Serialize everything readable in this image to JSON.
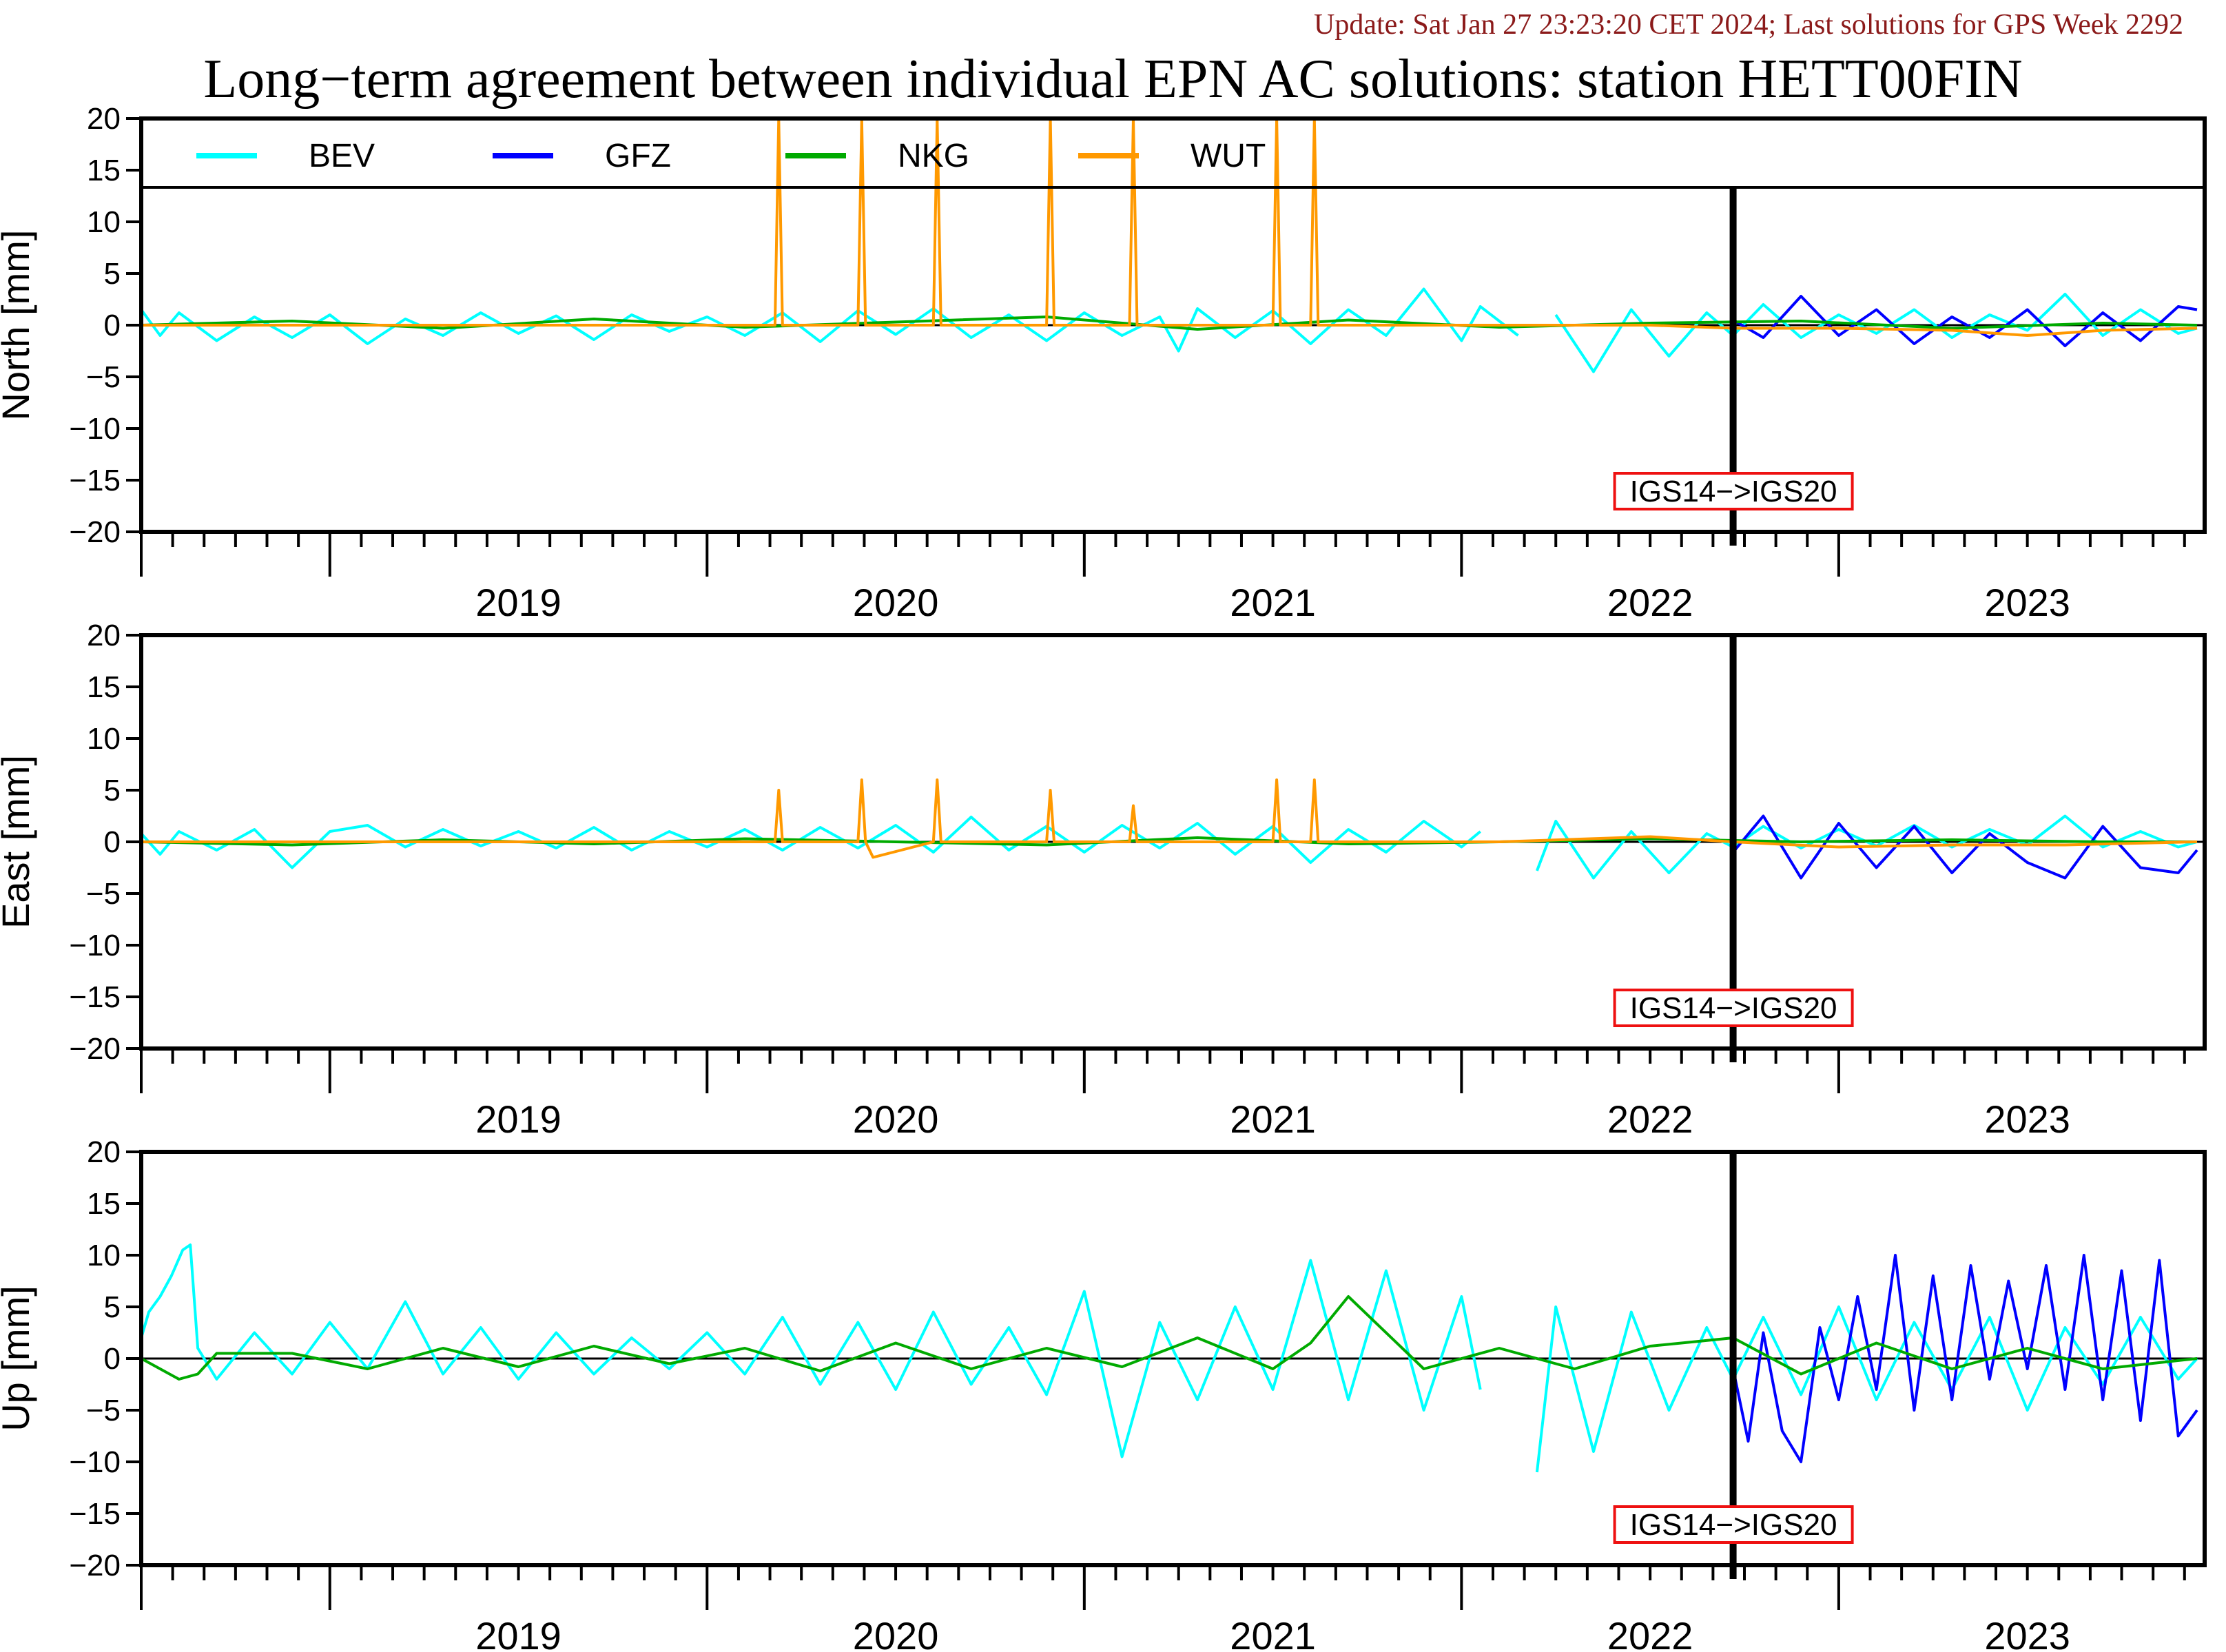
{
  "update_text": "Update: Sat Jan 27 23:23:20 CET 2024; Last solutions for GPS Week 2292",
  "chart_data": {
    "type": "line",
    "title": "Long−term agreement between individual EPN AC solutions: station HETT00FIN",
    "xlim": [
      2018.5,
      2023.97
    ],
    "year_ticks": [
      "2019",
      "2020",
      "2021",
      "2022",
      "2023"
    ],
    "ylim": [
      -20,
      20
    ],
    "yticks": [
      "20",
      "15",
      "10",
      "5",
      "0",
      "−5",
      "−10",
      "−15",
      "−20"
    ],
    "legend": {
      "placement": "top-left",
      "entries": [
        {
          "name": "BEV",
          "color": "#00ffff"
        },
        {
          "name": "GFZ",
          "color": "#0000ff"
        },
        {
          "name": "NKG",
          "color": "#00aa00"
        },
        {
          "name": "WUT",
          "color": "#ff9900"
        }
      ]
    },
    "reference_frame_change": {
      "label": "IGS14−>IGS20",
      "x": 2022.72
    },
    "panels": [
      {
        "ylabel": "North [mm]",
        "series": [
          {
            "name": "BEV",
            "x": [
              2018.5,
              2018.55,
              2018.6,
              2018.7,
              2018.8,
              2018.9,
              2019.0,
              2019.1,
              2019.2,
              2019.3,
              2019.4,
              2019.5,
              2019.6,
              2019.7,
              2019.8,
              2019.9,
              2020.0,
              2020.1,
              2020.2,
              2020.3,
              2020.4,
              2020.5,
              2020.6,
              2020.7,
              2020.8,
              2020.9,
              2021.0,
              2021.1,
              2021.2,
              2021.25,
              2021.3,
              2021.4,
              2021.5,
              2021.6,
              2021.7,
              2021.8,
              2021.9,
              2022.0,
              2022.05,
              2022.15,
              2022.2,
              2022.25,
              2022.35,
              2022.45,
              2022.55,
              2022.65,
              2022.72,
              2022.8,
              2022.9,
              2023.0,
              2023.1,
              2023.2,
              2023.3,
              2023.4,
              2023.5,
              2023.6,
              2023.7,
              2023.8,
              2023.9,
              2023.95
            ],
            "y": [
              1.5,
              -1.0,
              1.2,
              -1.5,
              0.8,
              -1.2,
              1.0,
              -1.8,
              0.6,
              -1.0,
              1.2,
              -0.8,
              0.9,
              -1.4,
              1.0,
              -0.6,
              0.8,
              -1.0,
              1.2,
              -1.6,
              1.4,
              -0.9,
              1.6,
              -1.2,
              1.0,
              -1.5,
              1.2,
              -1.0,
              0.8,
              -2.5,
              1.6,
              -1.2,
              1.4,
              -1.8,
              1.5,
              -1.0,
              3.5,
              -1.5,
              1.8,
              -1.0,
              null,
              1.0,
              -4.5,
              1.5,
              -3.0,
              1.2,
              -1.0,
              2.0,
              -1.2,
              1.0,
              -0.8,
              1.5,
              -1.2,
              1.0,
              -0.5,
              3.0,
              -1.0,
              1.5,
              -0.8,
              -0.3
            ]
          },
          {
            "name": "GFZ",
            "x": [
              2022.72,
              2022.8,
              2022.9,
              2023.0,
              2023.1,
              2023.2,
              2023.3,
              2023.4,
              2023.5,
              2023.6,
              2023.7,
              2023.8,
              2023.9,
              2023.95
            ],
            "y": [
              0.5,
              -1.2,
              2.8,
              -1.0,
              1.5,
              -1.8,
              0.8,
              -1.2,
              1.5,
              -2.0,
              1.2,
              -1.5,
              1.8,
              1.5
            ]
          },
          {
            "name": "NKG",
            "x": [
              2018.5,
              2018.9,
              2019.3,
              2019.7,
              2020.1,
              2020.5,
              2020.9,
              2021.3,
              2021.7,
              2022.1,
              2022.5,
              2022.9,
              2023.3,
              2023.7,
              2023.95
            ],
            "y": [
              0.0,
              0.4,
              -0.3,
              0.6,
              -0.2,
              0.3,
              0.8,
              -0.4,
              0.5,
              -0.2,
              0.2,
              0.4,
              -0.3,
              0.2,
              0.0
            ]
          },
          {
            "name": "WUT",
            "x": [
              2018.5,
              2020.18,
              2020.19,
              2020.2,
              2020.4,
              2020.41,
              2020.42,
              2020.6,
              2020.61,
              2020.62,
              2020.9,
              2020.91,
              2020.92,
              2021.12,
              2021.13,
              2021.14,
              2021.5,
              2021.51,
              2021.52,
              2021.6,
              2021.61,
              2021.62,
              2022.1,
              2022.5,
              2022.72,
              2023.0,
              2023.3,
              2023.5,
              2023.7,
              2023.95
            ],
            "y": [
              0.0,
              0.0,
              20.0,
              0.0,
              0.0,
              20.0,
              0.0,
              0.0,
              20.0,
              0.0,
              0.0,
              20.0,
              0.0,
              0.0,
              20.0,
              0.0,
              0.0,
              20.0,
              0.0,
              0.0,
              20.0,
              0.0,
              0.0,
              0.0,
              -0.3,
              -0.3,
              -0.5,
              -1.0,
              -0.5,
              -0.3
            ]
          }
        ]
      },
      {
        "ylabel": "East [mm]",
        "series": [
          {
            "name": "BEV",
            "x": [
              2018.5,
              2018.55,
              2018.6,
              2018.7,
              2018.8,
              2018.9,
              2019.0,
              2019.1,
              2019.2,
              2019.3,
              2019.4,
              2019.5,
              2019.6,
              2019.7,
              2019.8,
              2019.9,
              2020.0,
              2020.1,
              2020.2,
              2020.3,
              2020.4,
              2020.5,
              2020.6,
              2020.7,
              2020.8,
              2020.9,
              2021.0,
              2021.1,
              2021.2,
              2021.3,
              2021.4,
              2021.5,
              2021.6,
              2021.7,
              2021.8,
              2021.9,
              2022.0,
              2022.05,
              2022.15,
              2022.2,
              2022.25,
              2022.35,
              2022.45,
              2022.55,
              2022.65,
              2022.72,
              2022.8,
              2022.9,
              2023.0,
              2023.1,
              2023.2,
              2023.3,
              2023.4,
              2023.5,
              2023.6,
              2023.7,
              2023.8,
              2023.9,
              2023.95
            ],
            "y": [
              0.8,
              -1.2,
              1.0,
              -0.8,
              1.2,
              -2.5,
              1.0,
              1.6,
              -0.5,
              1.2,
              -0.4,
              1.0,
              -0.6,
              1.4,
              -0.8,
              1.0,
              -0.5,
              1.2,
              -0.8,
              1.4,
              -0.6,
              1.6,
              -1.0,
              2.4,
              -0.8,
              1.5,
              -1.0,
              1.6,
              -0.6,
              1.8,
              -1.2,
              1.5,
              -2.0,
              1.2,
              -1.0,
              2.0,
              -0.5,
              1.0,
              null,
              -2.8,
              2.0,
              -3.5,
              1.0,
              -3.0,
              0.8,
              -0.5,
              1.5,
              -0.6,
              1.2,
              -0.4,
              1.6,
              -0.5,
              1.2,
              -0.3,
              2.5,
              -0.5,
              1.0,
              -0.5,
              0.0
            ]
          },
          {
            "name": "GFZ",
            "x": [
              2022.72,
              2022.8,
              2022.9,
              2023.0,
              2023.1,
              2023.2,
              2023.3,
              2023.4,
              2023.5,
              2023.6,
              2023.7,
              2023.8,
              2023.9,
              2023.95
            ],
            "y": [
              -1.0,
              2.5,
              -3.5,
              1.8,
              -2.5,
              1.5,
              -3.0,
              0.8,
              -2.0,
              -3.5,
              1.5,
              -2.5,
              -3.0,
              -0.8
            ]
          },
          {
            "name": "NKG",
            "x": [
              2018.5,
              2018.9,
              2019.3,
              2019.7,
              2020.1,
              2020.5,
              2020.9,
              2021.3,
              2021.7,
              2022.1,
              2022.5,
              2022.9,
              2023.3,
              2023.7,
              2023.95
            ],
            "y": [
              0.0,
              -0.3,
              0.2,
              -0.2,
              0.3,
              0.0,
              -0.3,
              0.4,
              -0.2,
              0.0,
              0.3,
              0.0,
              0.2,
              0.0,
              0.0
            ]
          },
          {
            "name": "WUT",
            "x": [
              2018.5,
              2020.18,
              2020.19,
              2020.2,
              2020.4,
              2020.41,
              2020.42,
              2020.44,
              2020.6,
              2020.61,
              2020.62,
              2020.9,
              2020.91,
              2020.92,
              2021.12,
              2021.13,
              2021.14,
              2021.5,
              2021.51,
              2021.52,
              2021.6,
              2021.61,
              2021.62,
              2022.1,
              2022.5,
              2022.72,
              2023.0,
              2023.3,
              2023.6,
              2023.95
            ],
            "y": [
              0.0,
              0.0,
              5.0,
              0.0,
              0.0,
              6.0,
              0.0,
              -1.5,
              0.0,
              6.0,
              0.0,
              0.0,
              5.0,
              0.0,
              0.0,
              3.5,
              0.0,
              0.0,
              6.0,
              0.0,
              0.0,
              6.0,
              0.0,
              0.0,
              0.5,
              0.0,
              -0.5,
              -0.3,
              -0.3,
              0.0
            ]
          }
        ]
      },
      {
        "ylabel": "Up [mm]",
        "series": [
          {
            "name": "BEV",
            "x": [
              2018.5,
              2018.52,
              2018.55,
              2018.58,
              2018.61,
              2018.63,
              2018.65,
              2018.7,
              2018.8,
              2018.9,
              2019.0,
              2019.1,
              2019.2,
              2019.3,
              2019.4,
              2019.5,
              2019.6,
              2019.7,
              2019.8,
              2019.9,
              2020.0,
              2020.1,
              2020.2,
              2020.3,
              2020.4,
              2020.5,
              2020.6,
              2020.7,
              2020.8,
              2020.9,
              2021.0,
              2021.1,
              2021.2,
              2021.3,
              2021.4,
              2021.5,
              2021.6,
              2021.7,
              2021.8,
              2021.9,
              2022.0,
              2022.05,
              2022.15,
              2022.2,
              2022.25,
              2022.35,
              2022.45,
              2022.55,
              2022.65,
              2022.72,
              2022.8,
              2022.9,
              2023.0,
              2023.1,
              2023.2,
              2023.3,
              2023.4,
              2023.5,
              2023.6,
              2023.7,
              2023.8,
              2023.9,
              2023.95
            ],
            "y": [
              2.0,
              4.5,
              6.0,
              8.0,
              10.5,
              11.0,
              1.0,
              -2.0,
              2.5,
              -1.5,
              3.5,
              -1.0,
              5.5,
              -1.5,
              3.0,
              -2.0,
              2.5,
              -1.5,
              2.0,
              -1.0,
              2.5,
              -1.5,
              4.0,
              -2.5,
              3.5,
              -3.0,
              4.5,
              -2.5,
              3.0,
              -3.5,
              6.5,
              -9.5,
              3.5,
              -4.0,
              5.0,
              -3.0,
              9.5,
              -4.0,
              8.5,
              -5.0,
              6.0,
              -3.0,
              null,
              -11.0,
              5.0,
              -9.0,
              4.5,
              -5.0,
              3.0,
              -2.0,
              4.0,
              -3.5,
              5.0,
              -4.0,
              3.5,
              -3.0,
              4.0,
              -5.0,
              3.0,
              -2.5,
              4.0,
              -2.0,
              0.0
            ]
          },
          {
            "name": "GFZ",
            "x": [
              2022.72,
              2022.76,
              2022.8,
              2022.85,
              2022.9,
              2022.95,
              2023.0,
              2023.05,
              2023.1,
              2023.15,
              2023.2,
              2023.25,
              2023.3,
              2023.35,
              2023.4,
              2023.45,
              2023.5,
              2023.55,
              2023.6,
              2023.65,
              2023.7,
              2023.75,
              2023.8,
              2023.85,
              2023.9,
              2023.95
            ],
            "y": [
              -1.0,
              -8.0,
              2.5,
              -7.0,
              -10.0,
              3.0,
              -4.0,
              6.0,
              -3.0,
              10.0,
              -5.0,
              8.0,
              -4.0,
              9.0,
              -2.0,
              7.5,
              -1.0,
              9.0,
              -3.0,
              10.0,
              -4.0,
              8.5,
              -6.0,
              9.5,
              -7.5,
              -5.0
            ]
          },
          {
            "name": "NKG",
            "x": [
              2018.5,
              2018.55,
              2018.6,
              2018.65,
              2018.7,
              2018.9,
              2019.1,
              2019.3,
              2019.5,
              2019.7,
              2019.9,
              2020.1,
              2020.3,
              2020.5,
              2020.7,
              2020.9,
              2021.1,
              2021.3,
              2021.5,
              2021.6,
              2021.7,
              2021.9,
              2022.1,
              2022.3,
              2022.5,
              2022.72,
              2022.9,
              2023.1,
              2023.3,
              2023.5,
              2023.7,
              2023.95
            ],
            "y": [
              0.0,
              -1.0,
              -2.0,
              -1.5,
              0.5,
              0.5,
              -1.0,
              1.0,
              -0.8,
              1.2,
              -0.5,
              1.0,
              -1.2,
              1.5,
              -1.0,
              1.0,
              -0.8,
              2.0,
              -1.0,
              1.5,
              6.0,
              -1.0,
              1.0,
              -1.0,
              1.2,
              2.0,
              -1.5,
              1.5,
              -1.0,
              1.0,
              -1.0,
              0.0
            ]
          },
          {
            "name": "WUT",
            "x": [],
            "y": []
          }
        ]
      }
    ]
  }
}
